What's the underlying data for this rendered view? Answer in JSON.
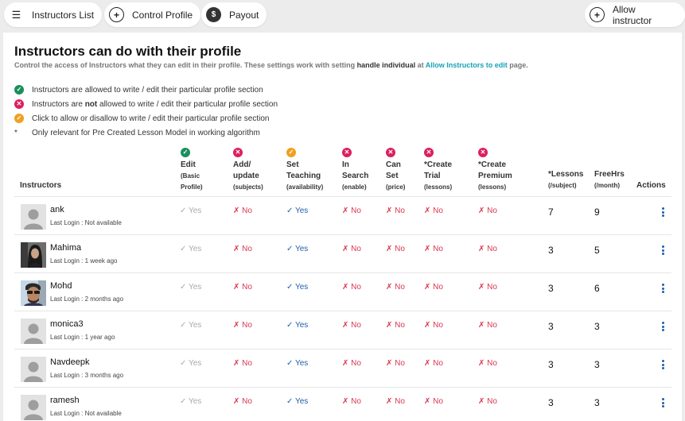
{
  "topbar": {
    "instructors_list": "Instructors List",
    "control_profile": "Control Profile",
    "payout": "Payout",
    "allow_instructor": "Allow instructor"
  },
  "page": {
    "title": "Instructors can do with their profile",
    "subtitle_pre": "Control the access of Instructors what they can edit in their profile. These settings work with setting ",
    "subtitle_bold": "handle individual",
    "subtitle_mid": " at ",
    "subtitle_link": "Allow Instructors to edit",
    "subtitle_post": " page."
  },
  "legend": {
    "allowed": "Instructors are allowed to write / edit their particular profile section",
    "not_pre": "Instructors are ",
    "not_bold": "not",
    "not_post": " allowed to write / edit their particular profile section",
    "toggle": "Click to allow or disallow to write / edit their particular profile section",
    "star": "*",
    "star_text": "Only relevant for Pre Created Lesson Model in working algorithm"
  },
  "headers": {
    "instructors": "Instructors",
    "edit": [
      "Edit",
      "(Basic",
      "Profile)"
    ],
    "add": [
      "Add/",
      "update",
      "(subjects)"
    ],
    "set": [
      "Set",
      "Teaching",
      "(availability)"
    ],
    "insearch": [
      "In",
      "Search",
      "(enable)"
    ],
    "canset": [
      "Can",
      "Set",
      "(price)"
    ],
    "trial": [
      "*Create",
      "Trial",
      "(lessons)"
    ],
    "premium": [
      "*Create",
      "Premium",
      "(lessons)"
    ],
    "lessons": [
      "*Lessons",
      "(/subject)"
    ],
    "freehrs": [
      "FreeHrs",
      "(/month)"
    ],
    "actions": "Actions"
  },
  "status_icons": {
    "edit": "check",
    "add": "cross",
    "set": "toggle",
    "insearch": "cross",
    "canset": "cross",
    "trial": "cross",
    "premium": "cross"
  },
  "labels": {
    "yes": "✓ Yes",
    "no": "✗ No"
  },
  "rows": [
    {
      "name": "ank",
      "login": "Last Login : Not available",
      "lessons": "7",
      "freehrs": "9",
      "avatar": "default"
    },
    {
      "name": "Mahima",
      "login": "Last Login : 1 week ago",
      "lessons": "3",
      "freehrs": "5",
      "avatar": "photo-woman"
    },
    {
      "name": "Mohd",
      "login": "Last Login : 2 months ago",
      "lessons": "3",
      "freehrs": "6",
      "avatar": "photo-man"
    },
    {
      "name": "monica3",
      "login": "Last Login : 1 year ago",
      "lessons": "3",
      "freehrs": "3",
      "avatar": "default"
    },
    {
      "name": "Navdeepk",
      "login": "Last Login : 3 months ago",
      "lessons": "3",
      "freehrs": "3",
      "avatar": "default"
    },
    {
      "name": "ramesh",
      "login": "Last Login : Not available",
      "lessons": "3",
      "freehrs": "3",
      "avatar": "default"
    }
  ],
  "colors": {
    "green": "#1a8f5e",
    "red": "#dc1f5e",
    "orange": "#f0a020",
    "link": "#17a2b8"
  }
}
